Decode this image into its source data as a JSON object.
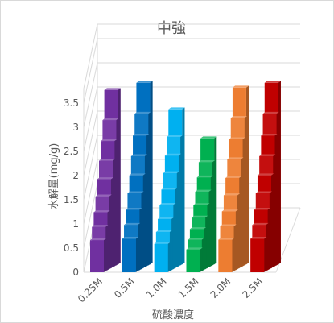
{
  "chart_data": {
    "type": "bar",
    "style": "3d-column",
    "title": "中強",
    "xlabel": "硫酸濃度",
    "ylabel": "水解量(mg/g)",
    "categories": [
      "0.25M",
      "0.5M",
      "1.0M",
      "1.5M",
      "2.0M",
      "2.5M"
    ],
    "values": [
      3.45,
      3.6,
      3.05,
      2.45,
      3.5,
      3.6
    ],
    "colors": [
      "#7030a0",
      "#0070c0",
      "#00b0f0",
      "#00b050",
      "#ed7d31",
      "#c00000"
    ],
    "yticks": [
      "0",
      "0.5",
      "1",
      "1.5",
      "2",
      "2.5",
      "3",
      "3.5"
    ],
    "ylim": [
      0,
      3.8
    ],
    "grid": true,
    "legend": "none"
  }
}
